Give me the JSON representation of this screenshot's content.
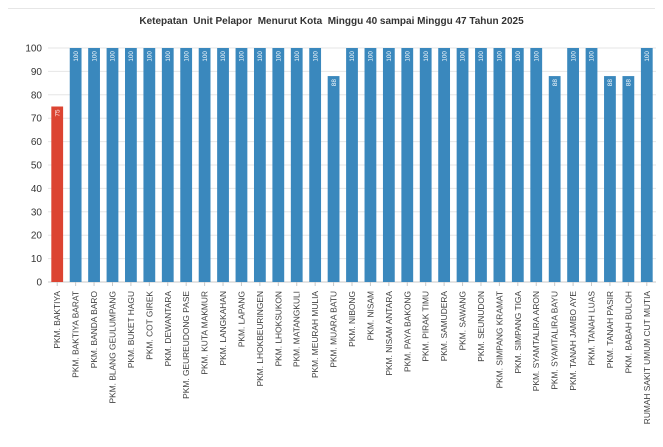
{
  "chart_data": {
    "type": "bar",
    "title": "Ketepatan  Unit Pelapor  Menurut Kota  Minggu 40 sampai Minggu 47 Tahun 2025",
    "xlabel": "",
    "ylabel": "",
    "ylim": [
      0,
      100
    ],
    "yticks": [
      0,
      10,
      20,
      30,
      40,
      50,
      60,
      70,
      80,
      90,
      100
    ],
    "grid": true,
    "colors": {
      "default": "#3a88bd",
      "highlight": "#dc4432",
      "label": "#ffffff"
    },
    "categories": [
      "PKM. BAKTIYA",
      "PKM. BAKTIYA BARAT",
      "PKM. BANDA BARO",
      "PKM. BLANG GEULUMPANG",
      "PKM. BUKET HAGU",
      "PKM. COT GIREK",
      "PKM. DEWANTARA",
      "PKM. GEUREUDONG PASE",
      "PKM. KUTA MAKMUR",
      "PKM. LANGKAHAN",
      "PKM. LAPANG",
      "PKM. LHOKBEURINGEN",
      "PKM. LHOKSUKON",
      "PKM. MATANGKULI",
      "PKM. MEURAH MULIA",
      "PKM. MUARA BATU",
      "PKM. NIBONG",
      "PKM. NISAM",
      "PKM. NISAM ANTARA",
      "PKM. PAYA BAKONG",
      "PKM. PIRAK TIMU",
      "PKM. SAMUDERA",
      "PKM. SAWANG",
      "PKM. SEUNUDON",
      "PKM. SIMPANG KRAMAT",
      "PKM. SIMPANG TIGA",
      "PKM. SYAMTALIRA ARON",
      "PKM. SYAMTALIRA BAYU",
      "PKM. TANAH JAMBO AYE",
      "PKM. TANAH LUAS",
      "PKM. TANAH PASIR",
      "PKM. BABAH BULOH",
      "RUMAH SAKIT UMUM CUT MUTIA"
    ],
    "values": [
      75,
      100,
      100,
      100,
      100,
      100,
      100,
      100,
      100,
      100,
      100,
      100,
      100,
      100,
      100,
      88,
      100,
      100,
      100,
      100,
      100,
      100,
      100,
      100,
      100,
      100,
      100,
      88,
      100,
      100,
      88,
      88,
      100
    ],
    "highlight_index": 0
  }
}
